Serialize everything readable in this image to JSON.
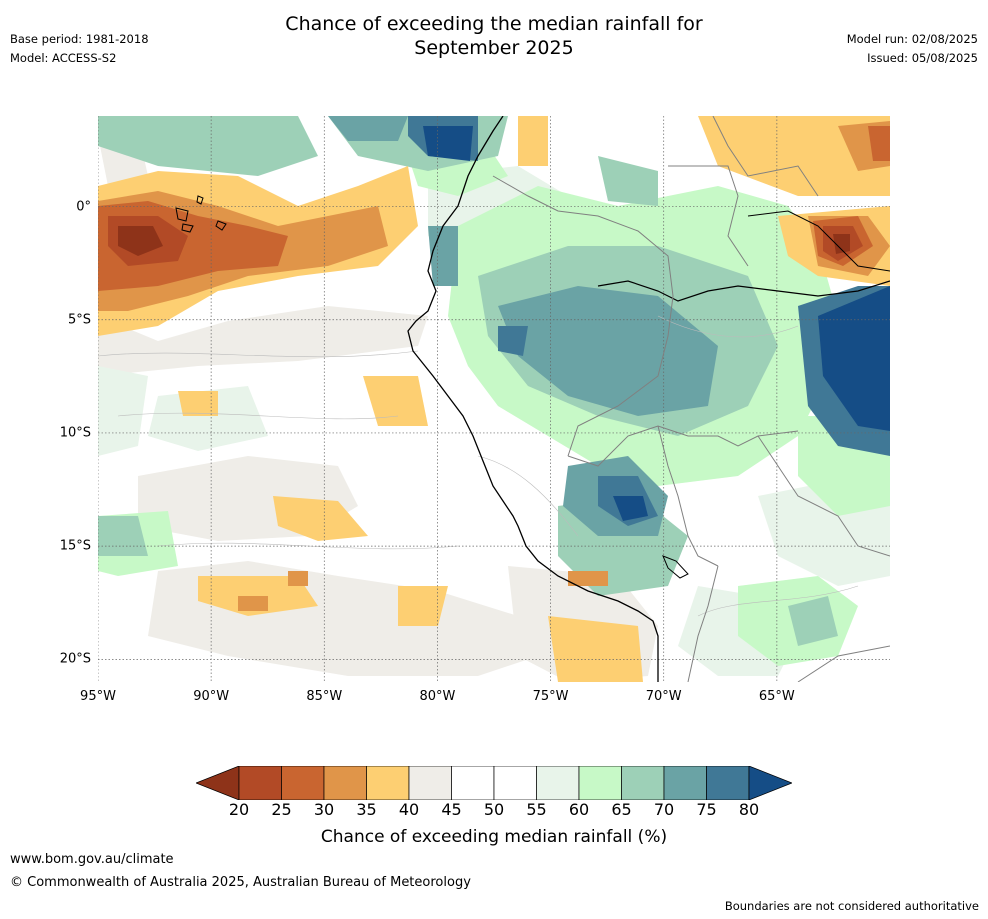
{
  "title": {
    "line1": "Chance of exceeding the median rainfall for",
    "line2": "September 2025"
  },
  "meta_left": {
    "base_period": "Base period: 1981-2018",
    "model": "Model: ACCESS-S2"
  },
  "meta_right": {
    "model_run": "Model run: 02/08/2025",
    "issued": "Issued: 05/08/2025"
  },
  "map": {
    "lat_labels": [
      "0°",
      "5°S",
      "10°S",
      "15°S",
      "20°S"
    ],
    "lon_labels": [
      "95°W",
      "90°W",
      "85°W",
      "80°W",
      "75°W",
      "70°W",
      "65°W"
    ],
    "lat_values": [
      0,
      -5,
      -10,
      -15,
      -20
    ],
    "lon_values": [
      -95,
      -90,
      -85,
      -80,
      -75,
      -70,
      -65
    ],
    "extent": {
      "lon_min": -95,
      "lon_max": -60,
      "lat_min": -21,
      "lat_max": 4
    }
  },
  "colorbar": {
    "ticks": [
      "20",
      "25",
      "30",
      "35",
      "40",
      "45",
      "50",
      "55",
      "60",
      "65",
      "70",
      "75",
      "80"
    ],
    "colors": [
      "#8e3319",
      "#b24a26",
      "#c96530",
      "#e09549",
      "#fdcf72",
      "#efede8",
      "#ffffff",
      "#ffffff",
      "#e8f4ea",
      "#c7f9c7",
      "#9dd0b7",
      "#6aa3a5",
      "#407896",
      "#154d86"
    ],
    "label": "Chance of exceeding median rainfall (%)"
  },
  "footer": {
    "url": "www.bom.gov.au/climate",
    "copyright": "© Commonwealth of Australia 2025, Australian Bureau of Meteorology",
    "note": "Boundaries are not considered authoritative"
  }
}
